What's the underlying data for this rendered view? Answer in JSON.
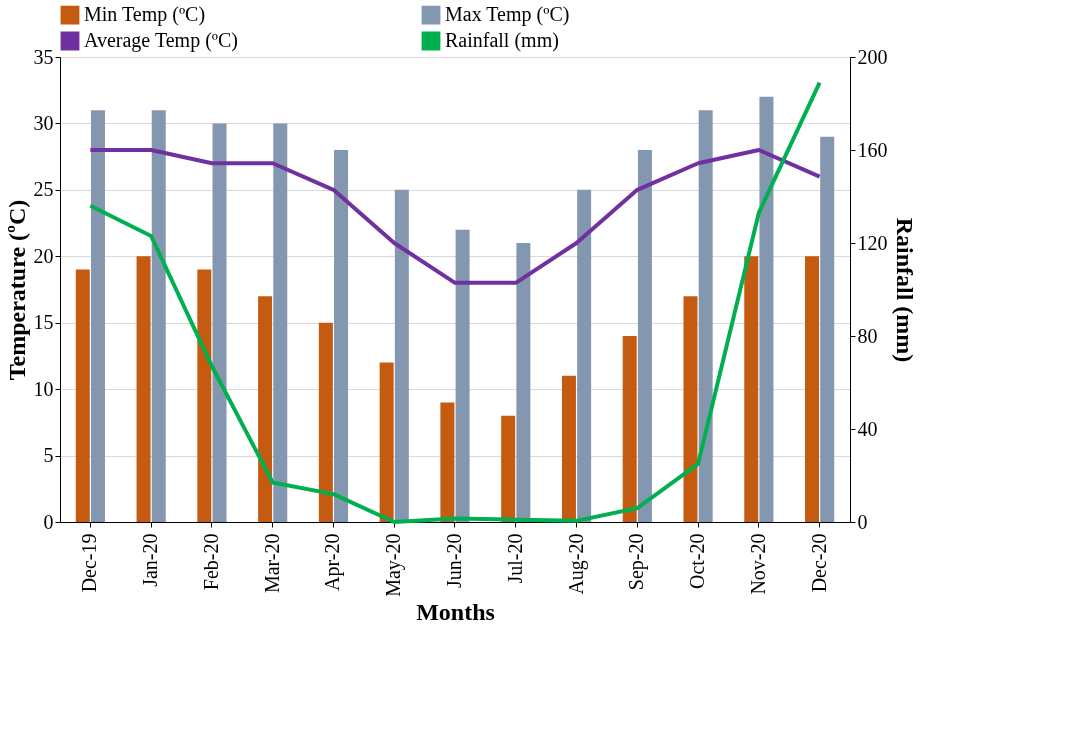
{
  "chart_data": {
    "type": "bar",
    "xlabel": "Months",
    "ylabel": "Temperature (ºC)",
    "y2label": "Rainfall (mm)",
    "categories": [
      "Dec-19",
      "Jan-20",
      "Feb-20",
      "Mar-20",
      "Apr-20",
      "May-20",
      "Jun-20",
      "Jul-20",
      "Aug-20",
      "Sep-20",
      "Oct-20",
      "Nov-20",
      "Dec-20"
    ],
    "series": [
      {
        "name": "Min Temp (ºC)",
        "color": "#c55a11",
        "values": [
          19,
          20,
          19,
          17,
          15,
          12,
          9,
          8,
          11,
          14,
          17,
          20,
          20
        ]
      },
      {
        "name": "Max Temp (ºC)",
        "color": "#8497b0",
        "values": [
          31,
          31,
          30,
          30,
          28,
          25,
          22,
          21,
          25,
          28,
          31,
          32,
          29
        ]
      },
      {
        "name": "Average Temp (ºC)",
        "type": "line",
        "color": "#7030a0",
        "values": [
          28,
          28,
          27,
          27,
          25,
          21,
          18,
          18,
          21,
          25,
          27,
          28,
          26
        ]
      },
      {
        "name": "Rainfall (mm)",
        "type": "line",
        "axis": "y2",
        "color": "#00b050",
        "values": [
          136,
          123,
          67,
          17,
          12,
          0,
          1.5,
          1,
          0.5,
          6,
          25,
          133,
          189
        ]
      }
    ],
    "ylim": [
      0,
      35
    ],
    "yticks": [
      0,
      5,
      10,
      15,
      20,
      25,
      30,
      35
    ],
    "y2lim": [
      0,
      200
    ],
    "y2ticks": [
      0,
      40,
      80,
      120,
      160,
      200
    ],
    "grid": "y",
    "legend": "top",
    "marker": "none",
    "line_style": "solid"
  }
}
